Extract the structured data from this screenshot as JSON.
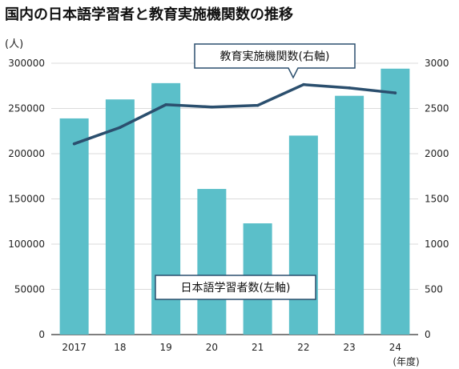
{
  "chart_data": {
    "type": "bar+line",
    "title": "国内の日本語学習者と教育実施機関数の推移",
    "y_unit": "(人)",
    "x_unit": "(年度)",
    "categories": [
      "2017",
      "18",
      "19",
      "20",
      "21",
      "22",
      "23",
      "24"
    ],
    "left_axis": {
      "ticks": [
        "0",
        "50000",
        "100000",
        "150000",
        "200000",
        "250000",
        "300000"
      ],
      "ylim": [
        0,
        300000
      ]
    },
    "right_axis": {
      "ticks": [
        "0",
        "500",
        "1000",
        "1500",
        "2000",
        "2500",
        "3000"
      ],
      "ylim": [
        0,
        3000
      ]
    },
    "series": [
      {
        "name": "日本語学習者数(左軸)",
        "type": "bar",
        "axis": "left",
        "color": "#5bbfc9",
        "values": [
          239000,
          260000,
          278000,
          161000,
          123000,
          220000,
          264000,
          294000
        ]
      },
      {
        "name": "教育実施機関数(右軸)",
        "type": "line",
        "axis": "right",
        "color": "#2b4f6e",
        "values": [
          2109,
          2290,
          2542,
          2516,
          2534,
          2764,
          2727,
          2672
        ]
      }
    ],
    "grid": true
  }
}
